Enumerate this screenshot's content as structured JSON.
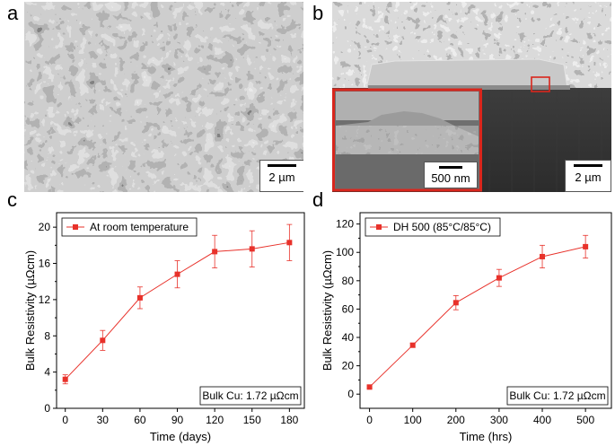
{
  "panels": {
    "a": {
      "letter": "a",
      "scale_label": "2 µm"
    },
    "b": {
      "letter": "b",
      "scale_label": "2 µm",
      "inset_scale_label": "500 nm",
      "inset_border_color": "#d9261c"
    },
    "c": {
      "letter": "c"
    },
    "d": {
      "letter": "d"
    }
  },
  "chart_data": [
    {
      "type": "line",
      "series": [
        {
          "name": "At room temperature",
          "x": [
            0,
            30,
            60,
            90,
            120,
            150,
            180
          ],
          "values": [
            3.2,
            7.5,
            12.2,
            14.8,
            17.3,
            17.6,
            18.3
          ],
          "errors": [
            0.5,
            1.1,
            1.2,
            1.5,
            1.8,
            2.0,
            2.0
          ]
        }
      ],
      "xlabel": "Time (days)",
      "ylabel": "Bulk Resistivity (µΩcm)",
      "xticks": [
        0,
        30,
        60,
        90,
        120,
        150,
        180
      ],
      "yticks": [
        0,
        4,
        8,
        12,
        16,
        20
      ],
      "xlim": [
        -7,
        192
      ],
      "ylim": [
        0,
        21.6
      ],
      "annotation": "Bulk Cu: 1.72 µΩcm",
      "legend_position": "top-left",
      "color": "#e8312a"
    },
    {
      "type": "line",
      "series": [
        {
          "name": "DH 500 (85°C/85°C)",
          "x": [
            0,
            100,
            200,
            300,
            400,
            500
          ],
          "values": [
            5,
            34.5,
            64.5,
            82,
            97,
            104
          ],
          "errors": [
            0.8,
            1.5,
            5,
            6,
            8,
            8
          ]
        }
      ],
      "xlabel": "Time (hrs)",
      "ylabel": "Bulk Resistivity (µΩcm)",
      "xticks": [
        0,
        100,
        200,
        300,
        400,
        500
      ],
      "yticks": [
        0,
        20,
        40,
        60,
        80,
        100,
        120
      ],
      "xlim": [
        -22,
        560
      ],
      "ylim": [
        -10,
        128
      ],
      "annotation": "Bulk Cu: 1.72 µΩcm",
      "legend_position": "top-left",
      "color": "#e8312a"
    }
  ]
}
